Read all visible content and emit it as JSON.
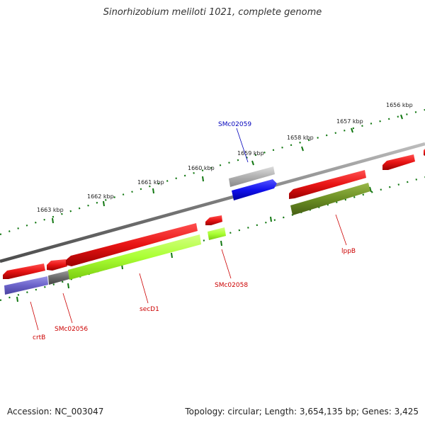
{
  "title": "Sinorhizobium meliloti 1021, complete genome",
  "accession_text": "Accession: NC_003047",
  "summary_text": "Topology: circular; Length: 3,654,135 bp; Genes: 3,425",
  "ruler": {
    "unit": "kbp",
    "ticks": [
      {
        "label": "1656 kbp",
        "kbp": 1656
      },
      {
        "label": "1657 kbp",
        "kbp": 1657
      },
      {
        "label": "1658 kbp",
        "kbp": 1658
      },
      {
        "label": "1659 kbp",
        "kbp": 1659
      },
      {
        "label": "1660 kbp",
        "kbp": 1660
      },
      {
        "label": "1661 kbp",
        "kbp": 1661
      },
      {
        "label": "1662 kbp",
        "kbp": 1662
      },
      {
        "label": "1663 kbp",
        "kbp": 1663
      }
    ]
  },
  "features": [
    {
      "name": "crtB",
      "label_color": "#cc0000",
      "gene_color": "#dd1111",
      "cds_color": "#6b63c9"
    },
    {
      "name": "SMc02056",
      "label_color": "#cc0000",
      "gene_color": "#dd1111",
      "cds_color": "#6a6a6a"
    },
    {
      "name": "secD1",
      "label_color": "#cc0000",
      "gene_color": "#dd1111",
      "cds_color": "#aaff33"
    },
    {
      "name": "SMc02058",
      "label_color": "#cc0000",
      "gene_color": "#dd1111",
      "cds_color": "#aaff33"
    },
    {
      "name": "SMc02059",
      "label_color": "#0000bb",
      "gene_color": "#aaaaaa",
      "cds_color": "#1111ee"
    },
    {
      "name": "lppB",
      "label_color": "#cc0000",
      "gene_color": "#dd1111",
      "cds_color": "#6b8e23"
    }
  ],
  "colors": {
    "backbone": "#7a7a7a",
    "tick": "#117711",
    "tick_label": "#222222"
  }
}
